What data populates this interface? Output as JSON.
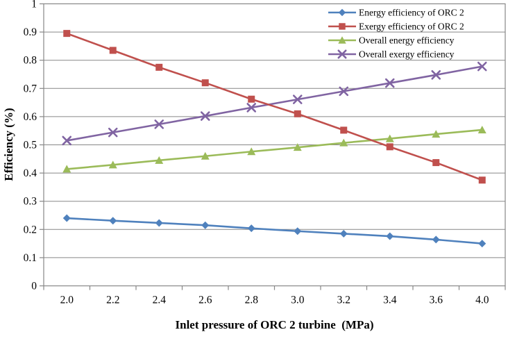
{
  "chart_data": {
    "type": "line",
    "title": "",
    "xlabel": "Inlet pressure of ORC 2 turbine  (MPa)",
    "ylabel": "Efficiency (%)",
    "categories": [
      "2.0",
      "2.2",
      "2.4",
      "2.6",
      "2.8",
      "3.0",
      "3.2",
      "3.4",
      "3.6",
      "4.0"
    ],
    "y_ticks": [
      0,
      0.1,
      0.2,
      0.3,
      0.4,
      0.5,
      0.6,
      0.7,
      0.8,
      0.9,
      1
    ],
    "y_tick_labels": [
      "0",
      "0.1",
      "0.2",
      "0.3",
      "0.4",
      "0.5",
      "0.6",
      "0.7",
      "0.8",
      "0.9",
      "1"
    ],
    "ylim": [
      0,
      1
    ],
    "grid": true,
    "legend_position": "top-right-inside",
    "series": [
      {
        "name": "Energy efficiency of ORC 2",
        "marker": "diamond",
        "color": "#4F81BD",
        "values": [
          0.24,
          0.231,
          0.223,
          0.215,
          0.204,
          0.194,
          0.185,
          0.176,
          0.164,
          0.15
        ]
      },
      {
        "name": "Exergy efficiency of ORC 2",
        "marker": "square",
        "color": "#C0504D",
        "values": [
          0.895,
          0.835,
          0.775,
          0.72,
          0.662,
          0.61,
          0.552,
          0.493,
          0.437,
          0.375
        ]
      },
      {
        "name": "Overall energy efficiency",
        "marker": "triangle",
        "color": "#9BBB59",
        "values": [
          0.414,
          0.429,
          0.445,
          0.46,
          0.476,
          0.491,
          0.507,
          0.522,
          0.538,
          0.553
        ]
      },
      {
        "name": "Overall exergy efficiency",
        "marker": "x",
        "color": "#8064A2",
        "values": [
          0.515,
          0.544,
          0.573,
          0.602,
          0.632,
          0.661,
          0.69,
          0.719,
          0.748,
          0.778
        ]
      }
    ],
    "colors": {
      "grid": "#878787",
      "axis": "#878787",
      "text": "#000000",
      "background": "#FFFFFF"
    }
  }
}
